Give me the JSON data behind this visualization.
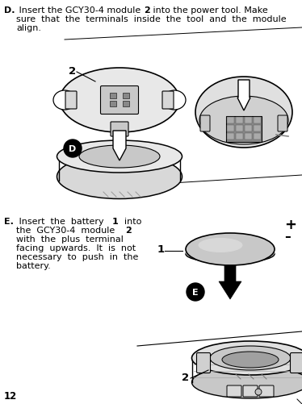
{
  "bg_color": "#ffffff",
  "page_number": "12",
  "fig_w": 3.74,
  "fig_h": 5.02,
  "dpi": 100,
  "text_d_line1_pre": "D.",
  "text_d_line1_mid": " Insert the GCY30-4 module  ",
  "text_d_line1_bold": "2",
  "text_d_line1_post": " into the power tool. Make",
  "text_d_line2": "sure  that  the  terminals  inside  the  tool  and  the  module",
  "text_d_line3": "align.",
  "text_e_line1_pre": "E.",
  "text_e_line1_mid": " Insert  the  battery  ",
  "text_e_line1_bold": "1",
  "text_e_line1_post": "  into",
  "text_e_line2_pre": "the  GCY30-4  module  ",
  "text_e_line2_bold": "2",
  "text_e_line3": "with  the  plus  terminal",
  "text_e_line4": "facing  upwards.  It  is  not",
  "text_e_line5": "necessary  to  push  in  the",
  "text_e_line6": "battery.",
  "label_2_d": "2",
  "label_1_e": "1",
  "label_2_e": "2",
  "plus_sign": "+",
  "minus_sign": "–",
  "circle_d": "D",
  "circle_e": "E",
  "fs_body": 8.0,
  "fs_label": 9.5,
  "fs_bold_num": 9.5,
  "fs_plus": 13,
  "fs_minus": 11,
  "fs_page": 8.5
}
